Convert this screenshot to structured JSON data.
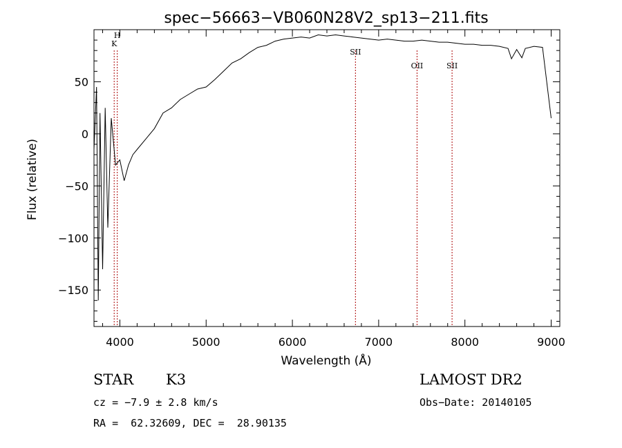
{
  "chart_data": {
    "type": "line",
    "title": "spec−56663−VB060N28V2_sp13−211.fits",
    "xlabel": "Wavelength (Å)",
    "ylabel": "Flux (relative)",
    "xlim": [
      3700,
      9100
    ],
    "ylim": [
      -185,
      100
    ],
    "xticks": [
      4000,
      5000,
      6000,
      7000,
      8000,
      9000
    ],
    "yticks": [
      -150,
      -100,
      -50,
      0,
      50
    ],
    "ytick_labels": [
      "−150",
      "−100",
      "−50",
      "0",
      "50"
    ],
    "series": [
      {
        "x": [
          3700,
          3730,
          3750,
          3770,
          3800,
          3830,
          3860,
          3900,
          3950,
          4000,
          4050,
          4100,
          4150,
          4200,
          4300,
          4400,
          4500,
          4600,
          4700,
          4800,
          4900,
          5000,
          5100,
          5200,
          5300,
          5400,
          5500,
          5600,
          5700,
          5800,
          5900,
          6000,
          6100,
          6200,
          6300,
          6400,
          6500,
          6600,
          6700,
          6800,
          6900,
          7000,
          7100,
          7200,
          7300,
          7400,
          7500,
          7600,
          7700,
          7800,
          7900,
          8000,
          8100,
          8200,
          8300,
          8400,
          8500,
          8540,
          8600,
          8660,
          8700,
          8800,
          8900,
          9000
        ],
        "y": [
          -15,
          45,
          -160,
          20,
          -130,
          25,
          -90,
          15,
          -30,
          -25,
          -45,
          -30,
          -20,
          -15,
          -5,
          5,
          20,
          25,
          33,
          38,
          43,
          45,
          52,
          60,
          68,
          72,
          78,
          83,
          85,
          89,
          91,
          92,
          93,
          92,
          95,
          94,
          95,
          94,
          93,
          92,
          91,
          90,
          91,
          90,
          89,
          89,
          90,
          89,
          88,
          88,
          87,
          86,
          86,
          85,
          85,
          84,
          82,
          72,
          81,
          73,
          82,
          84,
          83,
          15
        ]
      }
    ],
    "lines": [
      {
        "label": "H",
        "x": 3970
      },
      {
        "label": "K",
        "x": 3934
      },
      {
        "label": "SII",
        "x": 6731
      },
      {
        "label": "OII",
        "x": 7445
      },
      {
        "label": "SII",
        "x": 7851
      }
    ]
  },
  "info": {
    "object_type": "STAR",
    "subclass": "K3",
    "survey": "LAMOST DR2",
    "cz": "cz = −7.9 ± 2.8 km/s",
    "obs_date": "Obs−Date: 20140105",
    "radec": "RA =  62.32609, DEC =  28.90135"
  }
}
